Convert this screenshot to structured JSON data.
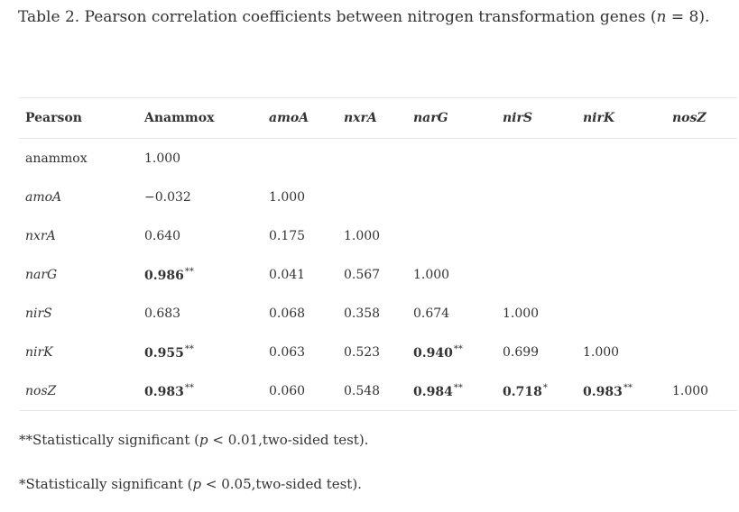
{
  "caption": {
    "prefix": "Table 2. Pearson correlation coefficients between nitrogen transformation genes (",
    "n_var": "n",
    "n_rest": " = 8)."
  },
  "table": {
    "headers": [
      {
        "text": "Pearson",
        "italic": false
      },
      {
        "text": "Anammox",
        "italic": false
      },
      {
        "text": "amoA",
        "italic": true
      },
      {
        "text": "nxrA",
        "italic": true
      },
      {
        "text": "narG",
        "italic": true
      },
      {
        "text": "nirS",
        "italic": true
      },
      {
        "text": "nirK",
        "italic": true
      },
      {
        "text": "nosZ",
        "italic": true
      }
    ],
    "rows": [
      {
        "label": "anammox",
        "italic": false,
        "cells": [
          {
            "v": "1.000"
          }
        ]
      },
      {
        "label": "amoA",
        "italic": true,
        "cells": [
          {
            "v": "−0.032"
          },
          {
            "v": "1.000"
          }
        ]
      },
      {
        "label": "nxrA",
        "italic": true,
        "cells": [
          {
            "v": "0.640"
          },
          {
            "v": "0.175"
          },
          {
            "v": "1.000"
          }
        ]
      },
      {
        "label": "narG",
        "italic": true,
        "cells": [
          {
            "v": "0.986",
            "sig": "**"
          },
          {
            "v": "0.041"
          },
          {
            "v": "0.567"
          },
          {
            "v": "1.000"
          }
        ]
      },
      {
        "label": "nirS",
        "italic": true,
        "cells": [
          {
            "v": "0.683"
          },
          {
            "v": "0.068"
          },
          {
            "v": "0.358"
          },
          {
            "v": "0.674"
          },
          {
            "v": "1.000"
          }
        ]
      },
      {
        "label": "nirK",
        "italic": true,
        "cells": [
          {
            "v": "0.955",
            "sig": "**"
          },
          {
            "v": "0.063"
          },
          {
            "v": "0.523"
          },
          {
            "v": "0.940",
            "sig": "**"
          },
          {
            "v": "0.699"
          },
          {
            "v": "1.000"
          }
        ]
      },
      {
        "label": "nosZ",
        "italic": true,
        "cells": [
          {
            "v": "0.983",
            "sig": "**"
          },
          {
            "v": "0.060"
          },
          {
            "v": "0.548"
          },
          {
            "v": "0.984",
            "sig": "**"
          },
          {
            "v": "0.718",
            "sig": "*"
          },
          {
            "v": "0.983",
            "sig": "**"
          },
          {
            "v": "1.000"
          }
        ]
      }
    ]
  },
  "footnotes": [
    {
      "marker": "**",
      "pre": "Statistically significant (",
      "var": "p",
      "post": " < 0.01,two-sided test)."
    },
    {
      "marker": "*",
      "pre": "Statistically significant (",
      "var": "p",
      "post": " < 0.05,two-sided test)."
    }
  ]
}
